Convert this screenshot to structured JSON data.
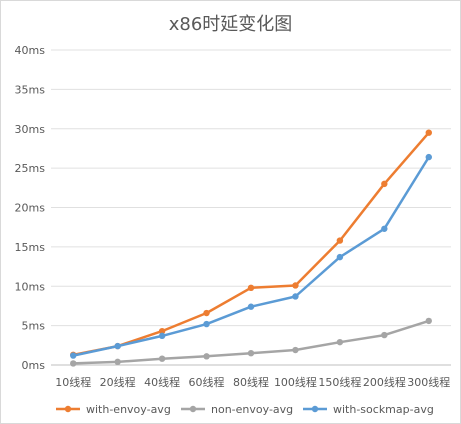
{
  "chart_data": {
    "type": "line",
    "title": "x86时延变化图",
    "xlabel": "",
    "ylabel": "",
    "categories": [
      "10线程",
      "20线程",
      "40线程",
      "60线程",
      "80线程",
      "100线程",
      "150线程",
      "200线程",
      "300线程"
    ],
    "y_ticks": [
      "0ms",
      "5ms",
      "10ms",
      "15ms",
      "20ms",
      "25ms",
      "30ms",
      "35ms",
      "40ms"
    ],
    "ylim": [
      0,
      40
    ],
    "y_unit": "ms",
    "grid": true,
    "legend_position": "bottom",
    "series": [
      {
        "name": "with-envoy-avg",
        "color": "#ed7d31",
        "values": [
          1.3,
          2.4,
          4.3,
          6.6,
          9.8,
          10.1,
          15.8,
          23.0,
          29.5
        ]
      },
      {
        "name": "non-envoy-avg",
        "color": "#a5a5a5",
        "values": [
          0.2,
          0.4,
          0.8,
          1.1,
          1.5,
          1.9,
          2.9,
          3.8,
          5.6
        ]
      },
      {
        "name": "with-sockmap-avg",
        "color": "#5b9bd5",
        "values": [
          1.2,
          2.4,
          3.7,
          5.2,
          7.4,
          8.7,
          13.7,
          17.3,
          26.4
        ]
      }
    ]
  }
}
